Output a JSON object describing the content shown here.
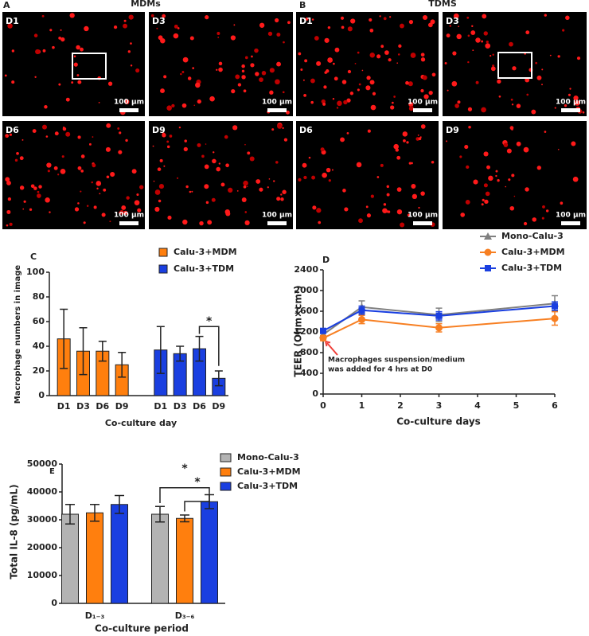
{
  "panels": [
    {
      "label": "A",
      "title": "MDMs",
      "images": [
        {
          "label": "D1",
          "scale": "100 µm"
        },
        {
          "label": "D3",
          "scale": "100 µm"
        },
        {
          "label": "D6",
          "scale": "100 µm"
        },
        {
          "label": "D9",
          "scale": "100 µm"
        }
      ]
    },
    {
      "label": "B",
      "title": "TDMS",
      "images": [
        {
          "label": "D1",
          "scale": "100 µm"
        },
        {
          "label": "D3",
          "scale": "100 µm"
        },
        {
          "label": "D6",
          "scale": "100 µm"
        },
        {
          "label": "D9",
          "scale": "100 µm"
        }
      ]
    }
  ],
  "chart_data": [
    {
      "type": "bar",
      "panel_label": "C",
      "ylabel": "Macrophage numbers in image",
      "xlabel": "Co-culture day",
      "categories": [
        "D1",
        "D3",
        "D6",
        "D9",
        "D1",
        "D3",
        "D6",
        "D9"
      ],
      "series": [
        {
          "name": "Calu-3+MDM",
          "color": "#ff7f0e",
          "values": [
            46,
            36,
            36,
            25,
            null,
            null,
            null,
            null
          ],
          "errors": [
            24,
            19,
            8,
            10,
            null,
            null,
            null,
            null
          ]
        },
        {
          "name": "Calu-3+TDM",
          "color": "#1a3fe0",
          "values": [
            null,
            null,
            null,
            null,
            37,
            34,
            38,
            14
          ],
          "errors": [
            null,
            null,
            null,
            null,
            19,
            6,
            10,
            6
          ]
        }
      ],
      "ylim": [
        0,
        100
      ],
      "yticks": [
        0,
        20,
        40,
        60,
        80,
        100
      ],
      "annotations": [
        {
          "text": "*"
        }
      ]
    },
    {
      "type": "line",
      "panel_label": "D",
      "ylabel": "TEER (Ohm×cm²)",
      "xlabel": "Co-culture days",
      "x": [
        0,
        1,
        3,
        6
      ],
      "series": [
        {
          "name": "Mono-Calu-3",
          "color": "#808080",
          "marker": "triangle",
          "values": [
            1150,
            1680,
            1530,
            1750
          ],
          "errors": [
            40,
            120,
            130,
            150
          ]
        },
        {
          "name": "Calu-3+MDM",
          "color": "#f77f22",
          "marker": "circle",
          "values": [
            1080,
            1440,
            1280,
            1460
          ],
          "errors": [
            50,
            80,
            80,
            130
          ]
        },
        {
          "name": "Calu-3+TDM",
          "color": "#1a3fe0",
          "marker": "square",
          "values": [
            1220,
            1620,
            1510,
            1700
          ],
          "errors": [
            40,
            80,
            80,
            80
          ]
        }
      ],
      "xlim": [
        0,
        6
      ],
      "xticks": [
        0,
        1,
        2,
        3,
        4,
        5,
        6
      ],
      "ylim": [
        0,
        2400
      ],
      "yticks": [
        0,
        400,
        800,
        1200,
        1600,
        2000,
        2400
      ],
      "annotations": [
        {
          "text": "Macrophages suspension/medium"
        },
        {
          "text": "was added for 4 hrs at D0"
        }
      ]
    },
    {
      "type": "bar",
      "panel_label": "E",
      "ylabel": "Total IL-8 (pg/mL)",
      "xlabel": "Co-culture period",
      "categories": [
        "D₁₋₃",
        "D₃₋₆"
      ],
      "series": [
        {
          "name": "Mono-Calu-3",
          "color": "#b3b3b3",
          "values": [
            32000,
            32000
          ],
          "errors": [
            3500,
            2800
          ]
        },
        {
          "name": "Calu-3+MDM",
          "color": "#ff7f0e",
          "values": [
            32500,
            30500
          ],
          "errors": [
            3000,
            1200
          ]
        },
        {
          "name": "Calu-3+TDM",
          "color": "#1a3fe0",
          "values": [
            35500,
            36500
          ],
          "errors": [
            3200,
            2500
          ]
        }
      ],
      "ylim": [
        0,
        50000
      ],
      "yticks": [
        0,
        10000,
        20000,
        30000,
        40000,
        50000
      ],
      "annotations": [
        {
          "text": "*"
        },
        {
          "text": "*"
        }
      ]
    }
  ]
}
